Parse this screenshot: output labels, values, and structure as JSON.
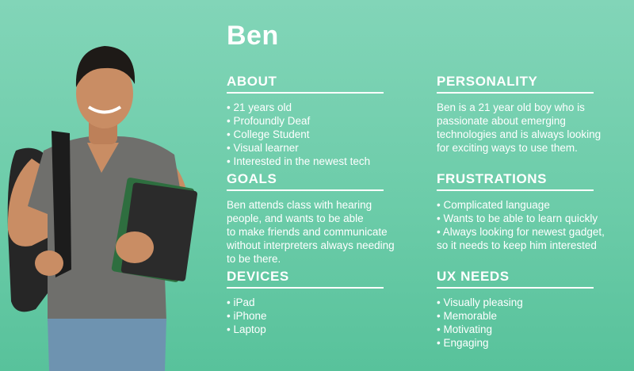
{
  "persona": {
    "name": "Ben"
  },
  "about": {
    "title": "ABOUT",
    "items": [
      "21 years old",
      "Profoundly Deaf",
      "College Student",
      "Visual learner",
      "Interested in the newest tech"
    ]
  },
  "goals": {
    "title": "GOALS",
    "text": "Ben attends class with hearing\npeople, and wants to be able\nto make friends and communicate\nwithout interpreters always needing\nto be there."
  },
  "devices": {
    "title": "DEVICES",
    "items": [
      "iPad",
      "iPhone",
      "Laptop"
    ]
  },
  "personality": {
    "title": "PERSONALITY",
    "text": "Ben is a 21 year old boy who is\npassionate about emerging\ntechnologies and is always looking\nfor exciting ways to use them."
  },
  "frustrations": {
    "title": "FRUSTRATIONS",
    "items": [
      "Complicated language",
      "Wants to be able to learn quickly",
      "Always looking for newest gadget,\nso it needs to keep him interested"
    ]
  },
  "ux_needs": {
    "title": "UX NEEDS",
    "items": [
      "Visually pleasing",
      "Memorable",
      "Motivating",
      "Engaging"
    ]
  },
  "colors": {
    "background_top": "#82d5b8",
    "background_bottom": "#58c29b",
    "text": "#ffffff"
  }
}
